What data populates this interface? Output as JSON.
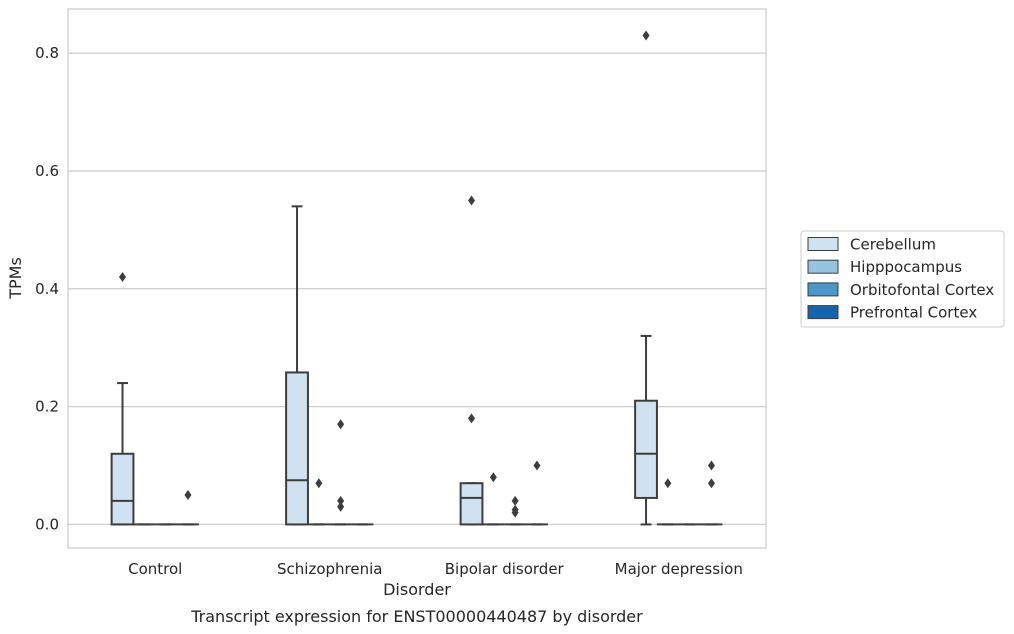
{
  "chart_data": {
    "type": "box",
    "caption": "Transcript expression for ENST00000440487 by disorder",
    "xlabel": "Disorder",
    "ylabel": "TPMs",
    "ylim": [
      -0.04,
      0.875
    ],
    "yticks": [
      0.0,
      0.2,
      0.4,
      0.6,
      0.8
    ],
    "ytick_labels": [
      "0.0",
      "0.2",
      "0.4",
      "0.6",
      "0.8"
    ],
    "grid": "horizontal",
    "legend_position": "right",
    "categories": [
      "Control",
      "Schizophrenia",
      "Bipolar disorder",
      "Major depression"
    ],
    "series": [
      {
        "name": "Cerebellum",
        "color": "#d0e1f2",
        "boxes": [
          {
            "q1": 0,
            "median": 0.04,
            "q3": 0.12,
            "whisker_low": 0,
            "whisker_high": 0.24,
            "outliers": [
              0.42
            ]
          },
          {
            "q1": 0,
            "median": 0.075,
            "q3": 0.258,
            "whisker_low": 0,
            "whisker_high": 0.54,
            "outliers": []
          },
          {
            "q1": 0,
            "median": 0.045,
            "q3": 0.07,
            "whisker_low": 0,
            "whisker_high": 0.07,
            "outliers": [
              0.18,
              0.55
            ]
          },
          {
            "q1": 0.045,
            "median": 0.12,
            "q3": 0.21,
            "whisker_low": 0,
            "whisker_high": 0.32,
            "outliers": [
              0.83
            ]
          }
        ]
      },
      {
        "name": "Hipppocampus",
        "color": "#94c4df",
        "boxes": [
          {
            "q1": 0,
            "median": 0,
            "q3": 0,
            "whisker_low": 0,
            "whisker_high": 0,
            "outliers": []
          },
          {
            "q1": 0,
            "median": 0,
            "q3": 0,
            "whisker_low": 0,
            "whisker_high": 0,
            "outliers": [
              0.07
            ]
          },
          {
            "q1": 0,
            "median": 0,
            "q3": 0,
            "whisker_low": 0,
            "whisker_high": 0,
            "outliers": [
              0.08
            ]
          },
          {
            "q1": 0,
            "median": 0,
            "q3": 0,
            "whisker_low": 0,
            "whisker_high": 0,
            "outliers": [
              0.07
            ]
          }
        ]
      },
      {
        "name": "Orbitofontal Cortex",
        "color": "#4a98c9",
        "boxes": [
          {
            "q1": 0,
            "median": 0,
            "q3": 0,
            "whisker_low": 0,
            "whisker_high": 0,
            "outliers": []
          },
          {
            "q1": 0,
            "median": 0,
            "q3": 0,
            "whisker_low": 0,
            "whisker_high": 0,
            "outliers": [
              0.17,
              0.04,
              0.03
            ]
          },
          {
            "q1": 0,
            "median": 0,
            "q3": 0,
            "whisker_low": 0,
            "whisker_high": 0,
            "outliers": [
              0.04,
              0.02,
              0.025
            ]
          },
          {
            "q1": 0,
            "median": 0,
            "q3": 0,
            "whisker_low": 0,
            "whisker_high": 0,
            "outliers": []
          }
        ]
      },
      {
        "name": "Prefrontal Cortex",
        "color": "#1764ab",
        "boxes": [
          {
            "q1": 0,
            "median": 0,
            "q3": 0,
            "whisker_low": 0,
            "whisker_high": 0,
            "outliers": [
              0.05
            ]
          },
          {
            "q1": 0,
            "median": 0,
            "q3": 0,
            "whisker_low": 0,
            "whisker_high": 0,
            "outliers": []
          },
          {
            "q1": 0,
            "median": 0,
            "q3": 0,
            "whisker_low": 0,
            "whisker_high": 0,
            "outliers": [
              0.1
            ]
          },
          {
            "q1": 0,
            "median": 0,
            "q3": 0,
            "whisker_low": 0,
            "whisker_high": 0,
            "outliers": [
              0.1,
              0.07
            ]
          }
        ]
      }
    ]
  }
}
